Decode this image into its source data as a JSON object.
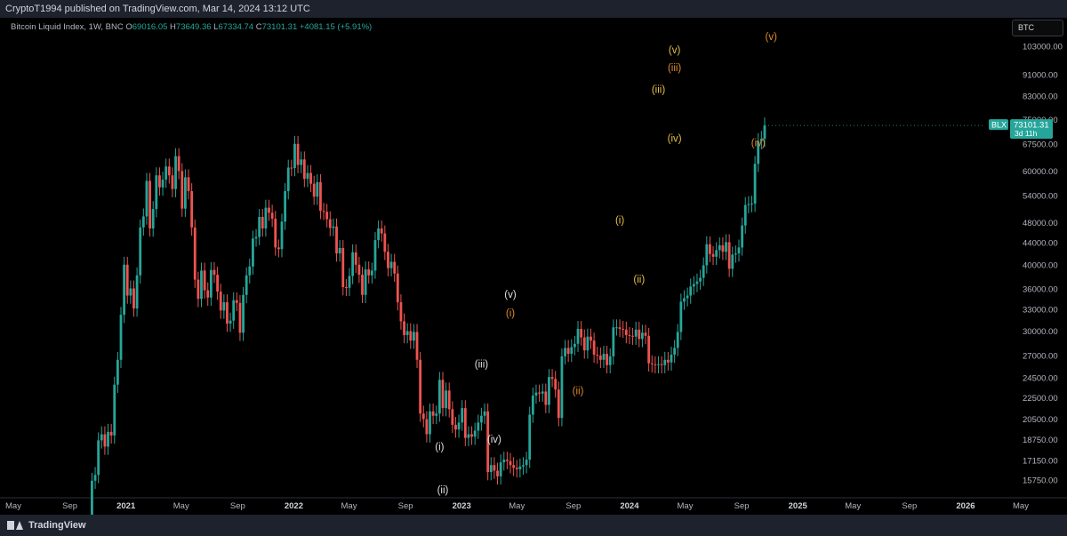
{
  "header": {
    "attribution": "CryptoT1994 published on TradingView.com, Mar 14, 2024 13:12 UTC"
  },
  "legend": {
    "name": "Bitcoin Liquid Index, 1W, BNC",
    "o_key": "O",
    "o": "69016.05",
    "h_key": "H",
    "h": "73649.36",
    "l_key": "L",
    "l": "67334.74",
    "c_key": "C",
    "c": "73101.31",
    "change": "+4081.15 (+5.91%)"
  },
  "symbol_box": "BTC",
  "price_tag": {
    "symbol": "BLX",
    "price": "73101.31",
    "countdown": "3d 11h"
  },
  "footer": {
    "brand": "TradingView"
  },
  "colors": {
    "up": "#26a69a",
    "down": "#ef5350",
    "wave_white": "#e0e0e0",
    "wave_yellow": "#e6c04a",
    "wave_orange": "#e08a2c",
    "tag_bg": "#26a69a"
  },
  "chart_data": {
    "type": "candlestick",
    "scale": "log",
    "ylim": [
      14800,
      110000
    ],
    "y_ticks": [
      "103000.00",
      "91000.00",
      "83000.00",
      "75000.00",
      "67500.00",
      "60000.00",
      "54000.00",
      "48000.00",
      "44000.00",
      "40000.00",
      "36000.00",
      "33000.00",
      "30000.00",
      "27000.00",
      "24500.00",
      "22500.00",
      "20500.00",
      "18750.00",
      "17150.00",
      "15750.00"
    ],
    "x_ticks": [
      "May",
      "Sep",
      "2021",
      "May",
      "Sep",
      "2022",
      "May",
      "Sep",
      "2023",
      "May",
      "Sep",
      "2024",
      "May",
      "Sep",
      "2025",
      "May",
      "Sep",
      "2026",
      "May"
    ],
    "x_tick_dates": [
      "2020-05",
      "2020-09",
      "2021-01",
      "2021-05",
      "2021-09",
      "2022-01",
      "2022-05",
      "2022-09",
      "2023-01",
      "2023-05",
      "2023-09",
      "2024-01",
      "2024-05",
      "2024-09",
      "2025-01",
      "2025-05",
      "2025-09",
      "2026-01",
      "2026-05"
    ],
    "weekly_closes": [
      {
        "start": "2020-10-05",
        "closes": [
          11500,
          13100,
          15700,
          16100,
          18700,
          19200,
          18200,
          19400,
          19100,
          23800,
          26500,
          32200,
          40000,
          35000,
          36100,
          33100,
          38200,
          47000,
          49300,
          57500,
          46800,
          50900,
          58900,
          55900,
          57800,
          61200,
          58900,
          55500,
          64000,
          60000,
          51000,
          58400,
          55000,
          47000,
          37500,
          34500,
          39000,
          35800,
          34700,
          39100,
          38300,
          35600,
          32800,
          34000,
          31000,
          31400,
          34300,
          33900,
          29800,
          35100,
          38200,
          39700,
          44800,
          45100,
          49200,
          46800,
          51200,
          50100,
          48800,
          43100,
          42800,
          48200,
          55000,
          60900,
          60800,
          67500,
          61600,
          63100,
          58000,
          59500,
          56800,
          53700,
          57200,
          50500,
          50300,
          48700,
          46900,
          47200,
          42000,
          43000,
          36300,
          36200,
          38100,
          42200,
          40000,
          38300,
          35100,
          39200,
          38200,
          39000,
          44500,
          46800,
          45800,
          42300,
          39400,
          40500,
          38500,
          34000,
          31300,
          29500,
          30000,
          28800,
          29900,
          26500,
          21000,
          20500,
          19200,
          21200,
          20800,
          21000,
          24300,
          21500,
          23200,
          21400,
          20000,
          19600,
          20200,
          21500,
          18900,
          19200,
          19000,
          19500,
          20200,
          20800,
          21200,
          16300,
          16800,
          16400,
          16000,
          17000,
          17200,
          17100,
          16800,
          16600,
          16500,
          16700,
          16800,
          17200,
          20900,
          22700,
          23000,
          22900,
          23100,
          21800,
          24600,
          24400,
          23300,
          20600,
          26900,
          27900,
          27200,
          28000,
          28400,
          30300,
          29200,
          27600,
          29300,
          28800,
          27100,
          27000,
          26500,
          27200,
          25900,
          26900,
          30500,
          30500,
          30300,
          30200,
          29500,
          29400,
          29300,
          30200,
          29000,
          29800,
          29400,
          26100,
          26000,
          25900,
          26000,
          25900,
          26500,
          26200,
          27100,
          27900,
          29900,
          34100,
          34600,
          35000,
          36400,
          36800,
          37200,
          37800,
          39900,
          43700,
          41900,
          41400,
          42600,
          43500,
          42300,
          44100,
          39300,
          41800,
          42000,
          43100,
          47400,
          51800,
          52000,
          52100,
          61900,
          68300,
          69000,
          73100
        ]
      }
    ],
    "wave_labels": [
      {
        "text": "(i)",
        "date": "2022-11-14",
        "price": 18200,
        "color": "white"
      },
      {
        "text": "(ii)",
        "date": "2022-11-21",
        "price": 15100,
        "color": "white"
      },
      {
        "text": "(iii)",
        "date": "2023-02-13",
        "price": 26000,
        "color": "white"
      },
      {
        "text": "(iv)",
        "date": "2023-03-13",
        "price": 18800,
        "color": "white"
      },
      {
        "text": "(v)",
        "date": "2023-04-17",
        "price": 35200,
        "color": "white"
      },
      {
        "text": "(i)",
        "date": "2023-04-17",
        "price": 32500,
        "color": "orange"
      },
      {
        "text": "(ii)",
        "date": "2023-09-11",
        "price": 23200,
        "color": "orange"
      },
      {
        "text": "(i)",
        "date": "2023-12-11",
        "price": 48500,
        "color": "yellow"
      },
      {
        "text": "(ii)",
        "date": "2024-01-22",
        "price": 37600,
        "color": "yellow"
      },
      {
        "text": "(iii)",
        "date": "2024-03-04",
        "price": 85500,
        "color": "yellow"
      },
      {
        "text": "(iv)",
        "date": "2024-04-08",
        "price": 69200,
        "color": "yellow"
      },
      {
        "text": "(v)",
        "date": "2024-04-08",
        "price": 101500,
        "color": "yellow"
      },
      {
        "text": "(iii)",
        "date": "2024-04-08",
        "price": 94000,
        "color": "orange"
      },
      {
        "text": "(iv)",
        "date": "2024-10-07",
        "price": 67800,
        "color": "orange"
      },
      {
        "text": "(v)",
        "date": "2024-11-04",
        "price": 107500,
        "color": "orange"
      }
    ]
  }
}
